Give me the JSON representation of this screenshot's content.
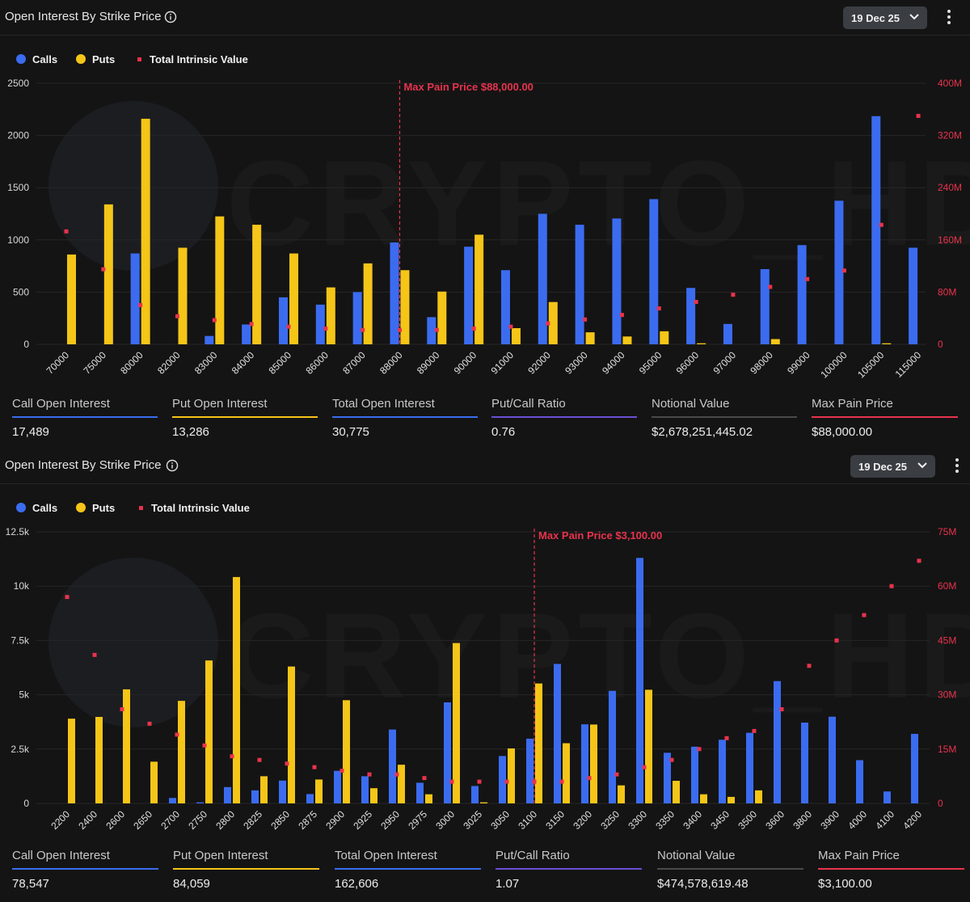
{
  "colors": {
    "calls": "#3b6cf0",
    "puts": "#f5c518",
    "intrinsic": "#e8334d",
    "maxpain": "#e8334d",
    "grid": "#262626"
  },
  "watermark": "CRYPTO_HD",
  "panels": [
    {
      "title": "Open Interest By Strike Price",
      "date": "19 Dec 25",
      "legend": {
        "calls": "Calls",
        "puts": "Puts",
        "intrinsic": "Total Intrinsic Value"
      },
      "stats": [
        {
          "label": "Call Open Interest",
          "value": "17,489",
          "color": "#3b6cf0"
        },
        {
          "label": "Put Open Interest",
          "value": "13,286",
          "color": "#f5c518"
        },
        {
          "label": "Total Open Interest",
          "value": "30,775",
          "color": "#3b6cf0"
        },
        {
          "label": "Put/Call Ratio",
          "value": "0.76",
          "color": "#6a4fd6"
        },
        {
          "label": "Notional Value",
          "value": "$2,678,251,445.02",
          "color": "#5a5a5a"
        },
        {
          "label": "Max Pain Price",
          "value": "$88,000.00",
          "color": "#e8334d"
        }
      ]
    },
    {
      "title": "Open Interest By Strike Price",
      "date": "19 Dec 25",
      "legend": {
        "calls": "Calls",
        "puts": "Puts",
        "intrinsic": "Total Intrinsic Value"
      },
      "stats": [
        {
          "label": "Call Open Interest",
          "value": "78,547",
          "color": "#3b6cf0"
        },
        {
          "label": "Put Open Interest",
          "value": "84,059",
          "color": "#f5c518"
        },
        {
          "label": "Total Open Interest",
          "value": "162,606",
          "color": "#3b6cf0"
        },
        {
          "label": "Put/Call Ratio",
          "value": "1.07",
          "color": "#6a4fd6"
        },
        {
          "label": "Notional Value",
          "value": "$474,578,619.48",
          "color": "#5a5a5a"
        },
        {
          "label": "Max Pain Price",
          "value": "$3,100.00",
          "color": "#e8334d"
        }
      ]
    }
  ],
  "chart_data": [
    {
      "type": "bar",
      "title": "Open Interest By Strike Price",
      "categories": [
        "70000",
        "75000",
        "80000",
        "82000",
        "83000",
        "84000",
        "85000",
        "86000",
        "87000",
        "88000",
        "89000",
        "90000",
        "91000",
        "92000",
        "93000",
        "94000",
        "95000",
        "96000",
        "97000",
        "98000",
        "99000",
        "100000",
        "105000",
        "115000"
      ],
      "series": [
        {
          "name": "Calls",
          "axis": "left",
          "values": [
            0,
            0,
            870,
            0,
            80,
            190,
            450,
            380,
            500,
            975,
            260,
            935,
            710,
            1250,
            1145,
            1205,
            1390,
            540,
            195,
            720,
            950,
            1375,
            2185,
            925
          ]
        },
        {
          "name": "Puts",
          "axis": "left",
          "values": [
            860,
            1340,
            2160,
            925,
            1225,
            1145,
            870,
            545,
            775,
            710,
            505,
            1050,
            155,
            405,
            115,
            75,
            125,
            10,
            0,
            50,
            0,
            0,
            10,
            0
          ]
        },
        {
          "name": "Total Intrinsic Value",
          "axis": "right",
          "mark": "point",
          "values": [
            173,
            115,
            60,
            43,
            37,
            31,
            27,
            24,
            22,
            22,
            22,
            24,
            27,
            32,
            38,
            45,
            55,
            65,
            76,
            88,
            100,
            113,
            183,
            350
          ]
        }
      ],
      "ylim_left": [
        0,
        2500
      ],
      "yticks_left": [
        "0",
        "500",
        "1000",
        "1500",
        "2000",
        "2500"
      ],
      "ylim_right": [
        0,
        400
      ],
      "yticks_right": [
        "0",
        "80M",
        "160M",
        "240M",
        "320M",
        "400M"
      ],
      "max_pain_category": "88000",
      "max_pain_label": "Max Pain Price $88,000.00"
    },
    {
      "type": "bar",
      "title": "Open Interest By Strike Price",
      "categories": [
        "2200",
        "2400",
        "2600",
        "2650",
        "2700",
        "2750",
        "2800",
        "2825",
        "2850",
        "2875",
        "2900",
        "2925",
        "2950",
        "2975",
        "3000",
        "3025",
        "3050",
        "3100",
        "3150",
        "3200",
        "3250",
        "3300",
        "3350",
        "3400",
        "3450",
        "3500",
        "3600",
        "3800",
        "3900",
        "4000",
        "4100",
        "4200"
      ],
      "series": [
        {
          "name": "Calls",
          "axis": "left",
          "values": [
            0,
            0,
            0,
            0,
            250,
            50,
            750,
            600,
            1050,
            430,
            1500,
            1250,
            3400,
            950,
            4650,
            800,
            2180,
            2980,
            6420,
            3640,
            5180,
            11300,
            2330,
            2610,
            2930,
            3250,
            5630,
            3720,
            3990,
            1990,
            550,
            3200
          ]
        },
        {
          "name": "Puts",
          "axis": "left",
          "values": [
            3900,
            3980,
            5250,
            1920,
            4720,
            6580,
            10420,
            1250,
            6300,
            1100,
            4750,
            700,
            1780,
            420,
            7380,
            50,
            2530,
            5520,
            2770,
            3630,
            830,
            5230,
            1040,
            420,
            300,
            600,
            0,
            0,
            0,
            0,
            0,
            0
          ]
        },
        {
          "name": "Total Intrinsic Value",
          "axis": "right",
          "mark": "point",
          "values": [
            57,
            41,
            26,
            22,
            19,
            16,
            13,
            12,
            11,
            10,
            9,
            8,
            8,
            7,
            6,
            6,
            6,
            6,
            6,
            7,
            8,
            10,
            12,
            15,
            18,
            20,
            26,
            38,
            45,
            52,
            60,
            67
          ]
        }
      ],
      "ylim_left": [
        0,
        12500
      ],
      "yticks_left": [
        "0",
        "2.5k",
        "5k",
        "7.5k",
        "10k",
        "12.5k"
      ],
      "ylim_right": [
        0,
        75
      ],
      "yticks_right": [
        "0",
        "15M",
        "30M",
        "45M",
        "60M",
        "75M"
      ],
      "max_pain_category": "3100",
      "max_pain_label": "Max Pain Price $3,100.00"
    }
  ]
}
